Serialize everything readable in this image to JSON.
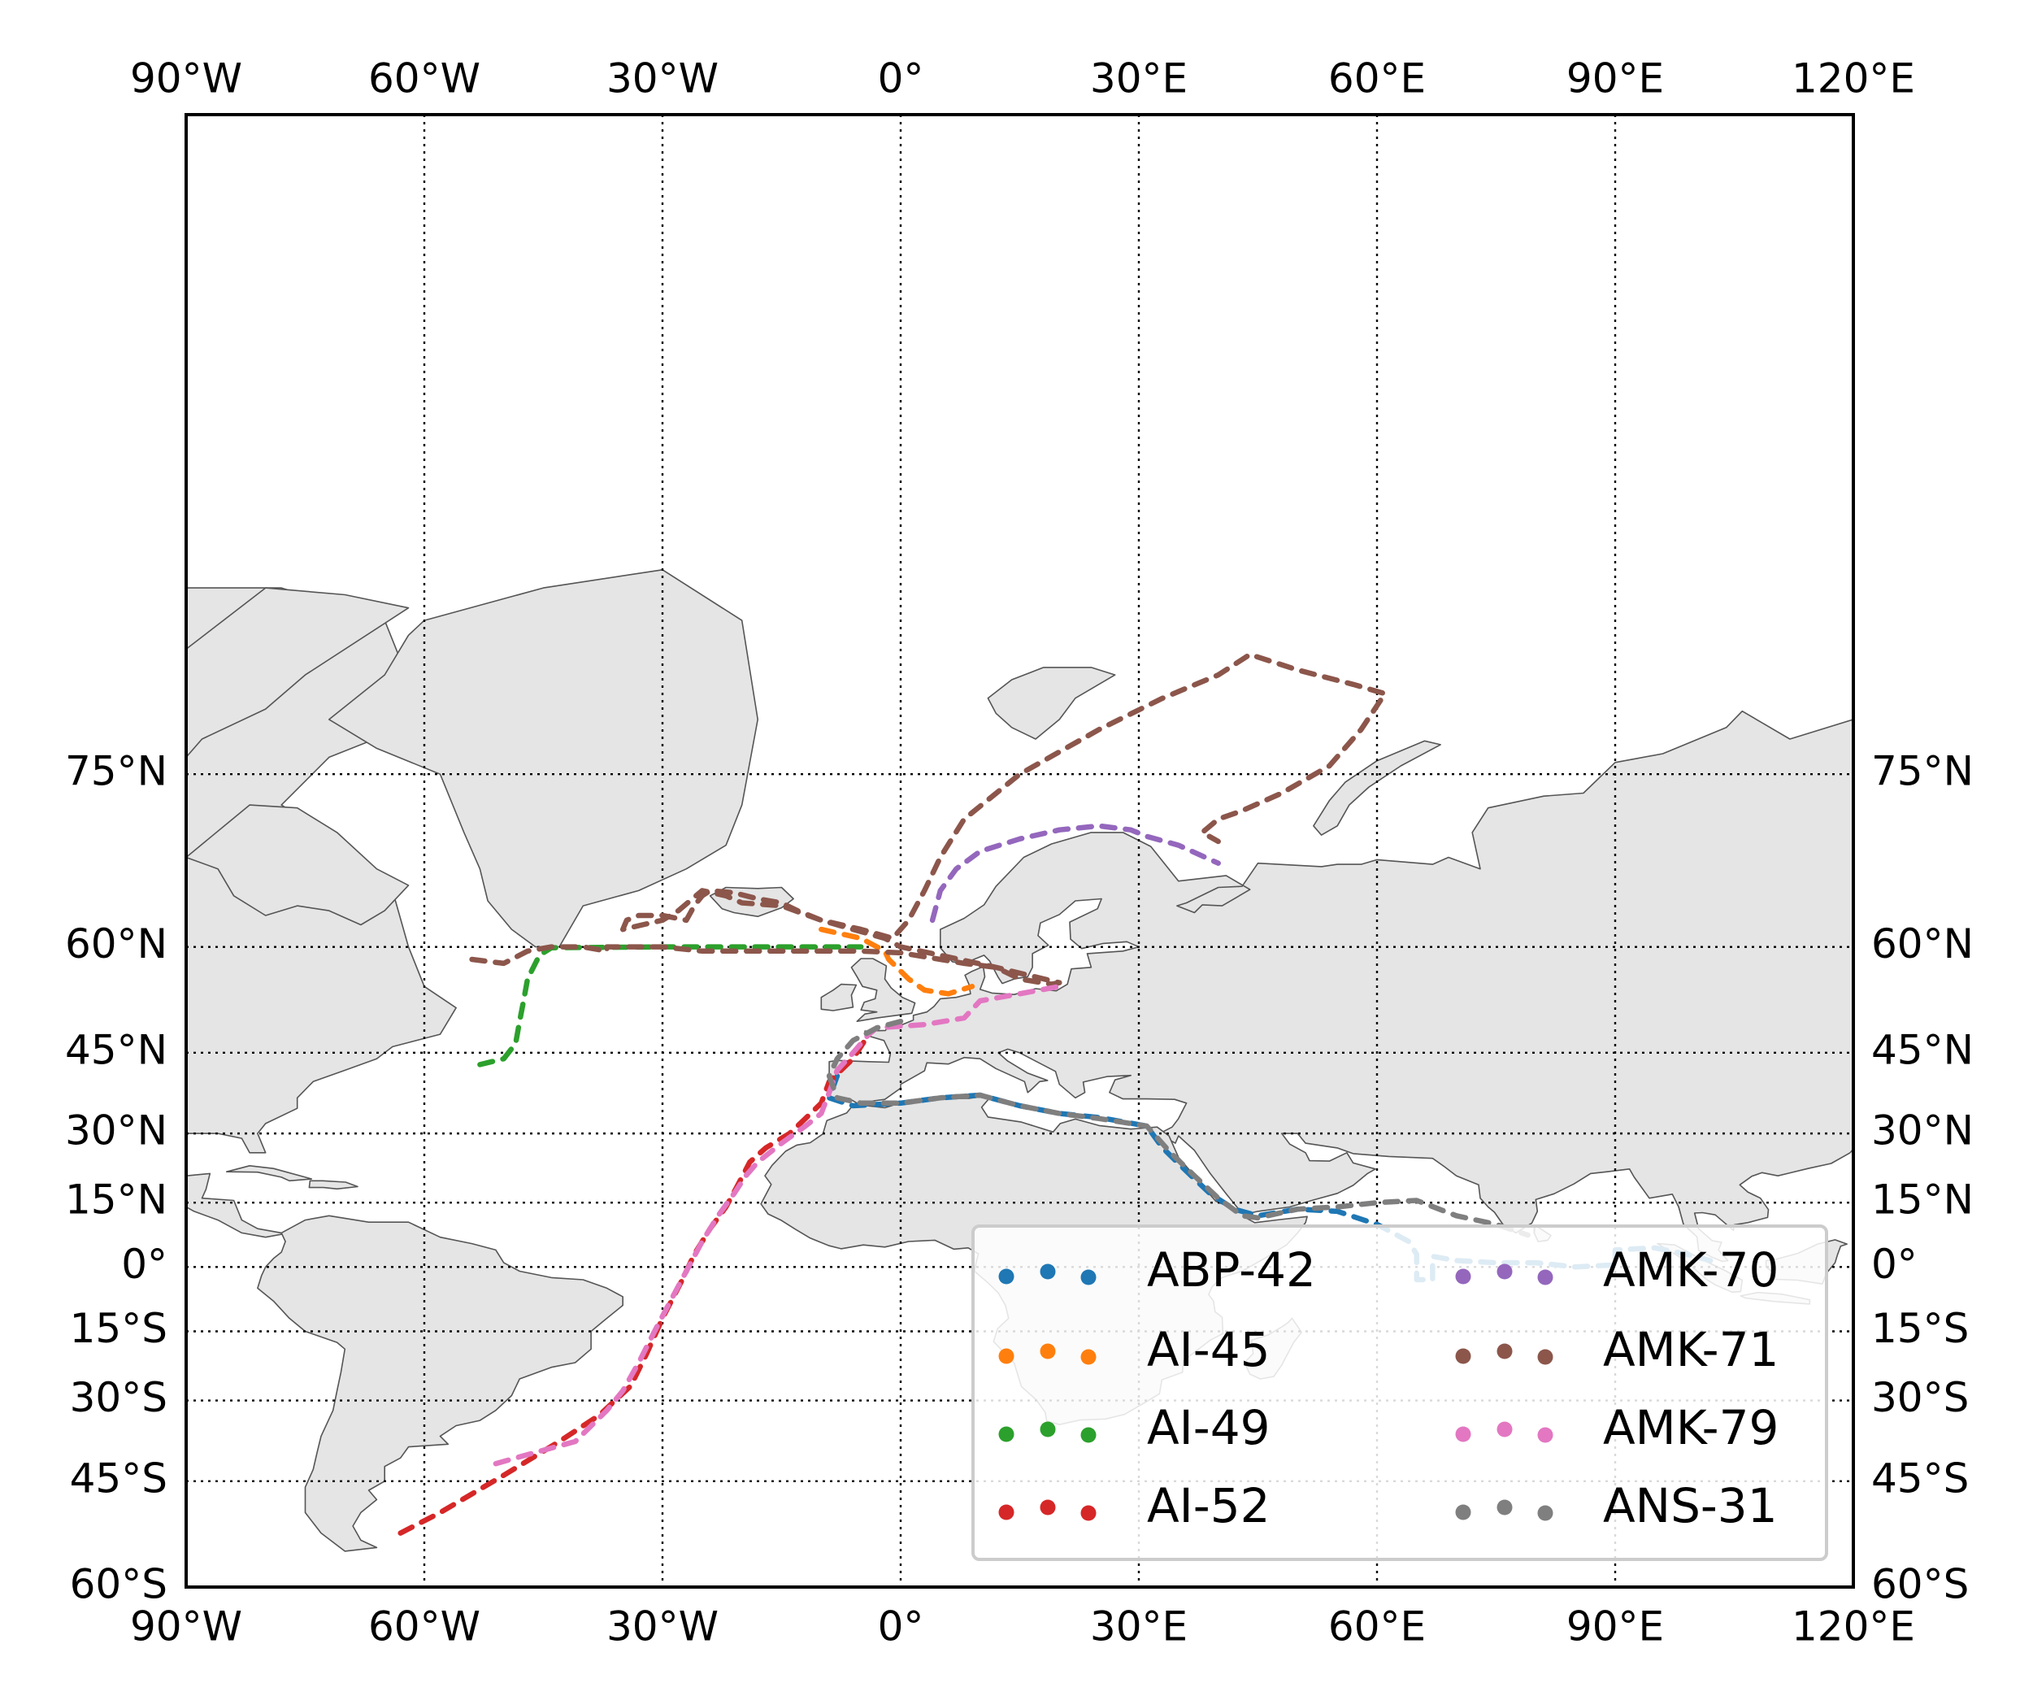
{
  "chart_data": {
    "type": "scatter",
    "title": "",
    "xlabel": "",
    "ylabel": "",
    "projection": "mercator",
    "xlim": [
      -90,
      120
    ],
    "ylim": [
      -60,
      89
    ],
    "x_ticks": [
      {
        "value": -90,
        "label": "90°W"
      },
      {
        "value": -60,
        "label": "60°W"
      },
      {
        "value": -30,
        "label": "30°W"
      },
      {
        "value": 0,
        "label": "0°"
      },
      {
        "value": 30,
        "label": "30°E"
      },
      {
        "value": 60,
        "label": "60°E"
      },
      {
        "value": 90,
        "label": "90°E"
      },
      {
        "value": 120,
        "label": "120°E"
      }
    ],
    "y_ticks": [
      {
        "value": 75,
        "label": "75°N"
      },
      {
        "value": 60,
        "label": "60°N"
      },
      {
        "value": 45,
        "label": "45°N"
      },
      {
        "value": 30,
        "label": "30°N"
      },
      {
        "value": 15,
        "label": "15°N"
      },
      {
        "value": 0,
        "label": "0°"
      },
      {
        "value": -15,
        "label": "15°S"
      },
      {
        "value": -30,
        "label": "30°S"
      },
      {
        "value": -45,
        "label": "45°S"
      },
      {
        "value": -60,
        "label": "60°S"
      }
    ],
    "grid": true,
    "grid_style": "dotted",
    "land_color": "#e5e5e5",
    "coast_color": "#555555",
    "legend": {
      "location": "lower-right",
      "columns": 2
    },
    "series": [
      {
        "name": "ABP-42",
        "color": "#1f77b4",
        "track": [
          [
            -8,
            41
          ],
          [
            -9,
            37
          ],
          [
            -6,
            35.5
          ],
          [
            0,
            36
          ],
          [
            5,
            37
          ],
          [
            10,
            37.5
          ],
          [
            15,
            35.5
          ],
          [
            20,
            34
          ],
          [
            25,
            33.2
          ],
          [
            31,
            31.5
          ],
          [
            33,
            27
          ],
          [
            36,
            22
          ],
          [
            39,
            17
          ],
          [
            42,
            13.5
          ],
          [
            45,
            12
          ],
          [
            50,
            13.5
          ],
          [
            55,
            13
          ],
          [
            60,
            10
          ],
          [
            64,
            6
          ],
          [
            65,
            3
          ],
          [
            65,
            0
          ],
          [
            65,
            -3
          ],
          [
            67,
            -3
          ],
          [
            67,
            0
          ],
          [
            67,
            2.5
          ],
          [
            70,
            1.5
          ],
          [
            75,
            1
          ],
          [
            80,
            1
          ],
          [
            85,
            0
          ],
          [
            90,
            0.5
          ],
          [
            90,
            4
          ],
          [
            95,
            4.5
          ],
          [
            99,
            3
          ],
          [
            102,
            1.5
          ]
        ]
      },
      {
        "name": "AI-45",
        "color": "#ff7f0e",
        "track": [
          [
            -10,
            62
          ],
          [
            -5,
            61
          ],
          [
            -2,
            59.5
          ],
          [
            -1.5,
            58.5
          ],
          [
            1,
            56
          ],
          [
            3,
            54.5
          ],
          [
            6,
            54
          ],
          [
            9,
            55
          ]
        ]
      },
      {
        "name": "AI-49",
        "color": "#2ca02c",
        "track": [
          [
            -53,
            43
          ],
          [
            -50,
            44
          ],
          [
            -48.5,
            46.5
          ],
          [
            -48,
            50
          ],
          [
            -47.5,
            53
          ],
          [
            -47,
            56
          ],
          [
            -45.5,
            59
          ],
          [
            -44,
            59.9
          ],
          [
            -30,
            60
          ],
          [
            -15,
            60
          ],
          [
            -5,
            60
          ]
        ]
      },
      {
        "name": "AI-52",
        "color": "#d62728",
        "track": [
          [
            -63,
            -53
          ],
          [
            -58,
            -50
          ],
          [
            -50,
            -44
          ],
          [
            -43,
            -38
          ],
          [
            -38,
            -33
          ],
          [
            -34,
            -27
          ],
          [
            -32,
            -20
          ],
          [
            -30,
            -12
          ],
          [
            -27.5,
            -3
          ],
          [
            -26,
            3
          ],
          [
            -24,
            9
          ],
          [
            -22,
            14
          ],
          [
            -20.5,
            19
          ],
          [
            -19,
            24
          ],
          [
            -17,
            27
          ],
          [
            -14,
            30
          ],
          [
            -12,
            33
          ],
          [
            -10,
            36
          ],
          [
            -9,
            40
          ],
          [
            -6,
            44
          ],
          [
            -4,
            48
          ]
        ]
      },
      {
        "name": "AMK-70",
        "color": "#9467bd",
        "track": [
          [
            4,
            63
          ],
          [
            5,
            66
          ],
          [
            7,
            68
          ],
          [
            10,
            69.5
          ],
          [
            15,
            70.5
          ],
          [
            20,
            71.2
          ],
          [
            25,
            71.5
          ],
          [
            29,
            71.2
          ],
          [
            31,
            70.7
          ],
          [
            35,
            70
          ],
          [
            40,
            68.5
          ]
        ]
      },
      {
        "name": "AMK-71",
        "color": "#8c564b",
        "track": [
          [
            -54,
            58.5
          ],
          [
            -50,
            58
          ],
          [
            -47,
            59.5
          ],
          [
            -44,
            60
          ],
          [
            -40,
            60
          ],
          [
            -37,
            59.5
          ],
          [
            -37,
            60
          ],
          [
            -30,
            60
          ],
          [
            -25,
            59.5
          ],
          [
            -15,
            59.5
          ],
          [
            -5,
            59.5
          ],
          [
            0,
            59.3
          ],
          [
            5,
            58.5
          ],
          [
            8,
            58
          ],
          [
            12,
            57.5
          ],
          [
            15,
            56
          ],
          [
            19,
            55.3
          ],
          [
            20,
            55.5
          ],
          [
            12,
            57.5
          ],
          [
            5,
            59
          ],
          [
            0,
            60
          ],
          [
            -2,
            61
          ],
          [
            -6,
            62
          ],
          [
            -10,
            63
          ],
          [
            -13,
            64
          ],
          [
            -15,
            64.8
          ],
          [
            -18,
            65.2
          ],
          [
            -21,
            65.8
          ],
          [
            -24,
            66
          ],
          [
            -25,
            65.5
          ],
          [
            -26,
            64.5
          ],
          [
            -27,
            63
          ],
          [
            -30,
            63.5
          ],
          [
            -33,
            63.5
          ],
          [
            -34.5,
            63
          ],
          [
            -35,
            62
          ],
          [
            -30,
            63
          ],
          [
            -28,
            64
          ],
          [
            -25,
            66
          ],
          [
            -22,
            65.5
          ],
          [
            -20,
            64.8
          ],
          [
            -15,
            64.5
          ],
          [
            -10,
            63
          ],
          [
            -5,
            62
          ],
          [
            -1,
            61
          ],
          [
            1,
            63
          ],
          [
            3,
            66
          ],
          [
            5,
            69
          ],
          [
            8,
            72
          ],
          [
            15,
            75
          ],
          [
            25,
            77.5
          ],
          [
            33,
            79
          ],
          [
            40,
            80
          ],
          [
            44,
            80.8
          ],
          [
            50,
            80.2
          ],
          [
            57,
            79.6
          ],
          [
            61,
            79.2
          ],
          [
            58,
            77.5
          ],
          [
            54,
            75.5
          ],
          [
            48,
            73.8
          ],
          [
            43,
            72.6
          ],
          [
            40,
            72
          ],
          [
            38,
            71
          ],
          [
            40,
            70.3
          ]
        ]
      },
      {
        "name": "AMK-79",
        "color": "#e377c2",
        "track": [
          [
            -51,
            -42
          ],
          [
            -46,
            -40
          ],
          [
            -41,
            -38
          ],
          [
            -37,
            -32
          ],
          [
            -35,
            -28
          ],
          [
            -33,
            -22
          ],
          [
            -31,
            -15
          ],
          [
            -29,
            -8
          ],
          [
            -27,
            -1
          ],
          [
            -25,
            6
          ],
          [
            -23,
            12
          ],
          [
            -21,
            17
          ],
          [
            -19.5,
            21
          ],
          [
            -18,
            24
          ],
          [
            -15,
            28
          ],
          [
            -12,
            31.5
          ],
          [
            -10,
            34
          ],
          [
            -9,
            38
          ],
          [
            -8,
            42
          ],
          [
            -6,
            45
          ],
          [
            -4,
            48
          ],
          [
            -3,
            49
          ],
          [
            3,
            49.5
          ],
          [
            8,
            50.5
          ],
          [
            10,
            53
          ],
          [
            15,
            54
          ],
          [
            20,
            55
          ]
        ]
      },
      {
        "name": "ANS-31",
        "color": "#7f7f7f",
        "track": [
          [
            0,
            50
          ],
          [
            -3,
            49
          ],
          [
            -6,
            47
          ],
          [
            -8,
            44
          ],
          [
            -9,
            41
          ],
          [
            -8,
            37
          ],
          [
            -5,
            36
          ],
          [
            0,
            36
          ],
          [
            5,
            37
          ],
          [
            10,
            37.5
          ],
          [
            15,
            35.5
          ],
          [
            20,
            34
          ],
          [
            25,
            33
          ],
          [
            31,
            31.5
          ],
          [
            34,
            26
          ],
          [
            37,
            21
          ],
          [
            40,
            16
          ],
          [
            43,
            12
          ],
          [
            45,
            11.5
          ],
          [
            50,
            13.5
          ],
          [
            55,
            14
          ],
          [
            60,
            15
          ],
          [
            65,
            15.5
          ],
          [
            70,
            12
          ],
          [
            75,
            10
          ],
          [
            79,
            7.5
          ]
        ]
      }
    ]
  }
}
